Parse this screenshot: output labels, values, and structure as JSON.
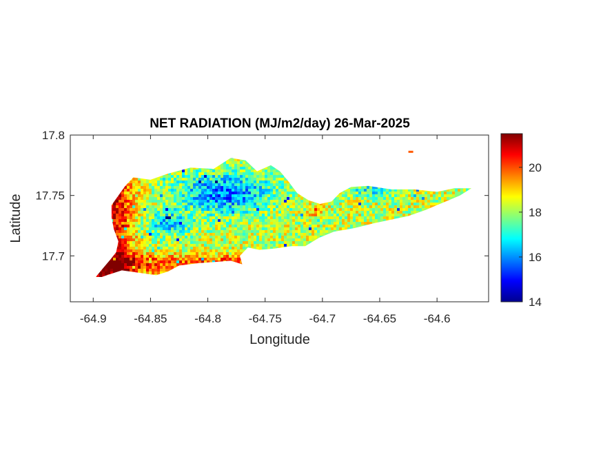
{
  "chart_data": {
    "type": "heatmap",
    "title": "NET RADIATION (MJ/m2/day) 26-Mar-2025",
    "xlabel": "Longitude",
    "ylabel": "Latitude",
    "xlim": [
      -64.92,
      -64.555
    ],
    "ylim": [
      17.662,
      17.8
    ],
    "xticks": [
      -64.9,
      -64.85,
      -64.8,
      -64.75,
      -64.7,
      -64.65,
      -64.6
    ],
    "xtick_labels": [
      "-64.9",
      "-64.85",
      "-64.8",
      "-64.75",
      "-64.7",
      "-64.65",
      "-64.6"
    ],
    "yticks": [
      17.7,
      17.75,
      17.8
    ],
    "ytick_labels": [
      "17.7",
      "17.75",
      "17.8"
    ],
    "colorbar": {
      "colormap": "jet",
      "range": [
        14,
        21.5
      ],
      "ticks": [
        14,
        16,
        18,
        20
      ],
      "tick_labels": [
        "14",
        "16",
        "18",
        "20"
      ]
    },
    "grid": false,
    "region_outline": [
      [
        -64.9,
        17.68
      ],
      [
        -64.893,
        17.688
      ],
      [
        -64.885,
        17.697
      ],
      [
        -64.88,
        17.703
      ],
      [
        -64.878,
        17.712
      ],
      [
        -64.882,
        17.722
      ],
      [
        -64.884,
        17.732
      ],
      [
        -64.884,
        17.742
      ],
      [
        -64.878,
        17.75
      ],
      [
        -64.872,
        17.758
      ],
      [
        -64.865,
        17.765
      ],
      [
        -64.85,
        17.763
      ],
      [
        -64.835,
        17.768
      ],
      [
        -64.815,
        17.773
      ],
      [
        -64.795,
        17.772
      ],
      [
        -64.78,
        17.781
      ],
      [
        -64.767,
        17.779
      ],
      [
        -64.757,
        17.77
      ],
      [
        -64.745,
        17.775
      ],
      [
        -64.737,
        17.77
      ],
      [
        -64.73,
        17.762
      ],
      [
        -64.722,
        17.752
      ],
      [
        -64.712,
        17.746
      ],
      [
        -64.702,
        17.743
      ],
      [
        -64.692,
        17.745
      ],
      [
        -64.685,
        17.752
      ],
      [
        -64.675,
        17.757
      ],
      [
        -64.66,
        17.758
      ],
      [
        -64.64,
        17.755
      ],
      [
        -64.62,
        17.755
      ],
      [
        -64.6,
        17.753
      ],
      [
        -64.585,
        17.756
      ],
      [
        -64.57,
        17.756
      ],
      [
        -64.58,
        17.75
      ],
      [
        -64.59,
        17.746
      ],
      [
        -64.61,
        17.738
      ],
      [
        -64.625,
        17.733
      ],
      [
        -64.64,
        17.73
      ],
      [
        -64.655,
        17.727
      ],
      [
        -64.672,
        17.723
      ],
      [
        -64.69,
        17.72
      ],
      [
        -64.703,
        17.715
      ],
      [
        -64.715,
        17.708
      ],
      [
        -64.727,
        17.708
      ],
      [
        -64.742,
        17.706
      ],
      [
        -64.755,
        17.705
      ],
      [
        -64.765,
        17.707
      ],
      [
        -64.772,
        17.7
      ],
      [
        -64.77,
        17.693
      ],
      [
        -64.78,
        17.696
      ],
      [
        -64.793,
        17.695
      ],
      [
        -64.808,
        17.694
      ],
      [
        -64.825,
        17.692
      ],
      [
        -64.835,
        17.687
      ],
      [
        -64.845,
        17.684
      ],
      [
        -64.86,
        17.686
      ],
      [
        -64.875,
        17.688
      ],
      [
        -64.888,
        17.684
      ],
      [
        -64.9,
        17.68
      ]
    ],
    "field_summary": {
      "west_coast_and_south_shore": "19.5-21.5",
      "central_uplands": "15.5-17",
      "east_end": "17.5-19.5",
      "min": 14,
      "max": 21.5
    }
  }
}
